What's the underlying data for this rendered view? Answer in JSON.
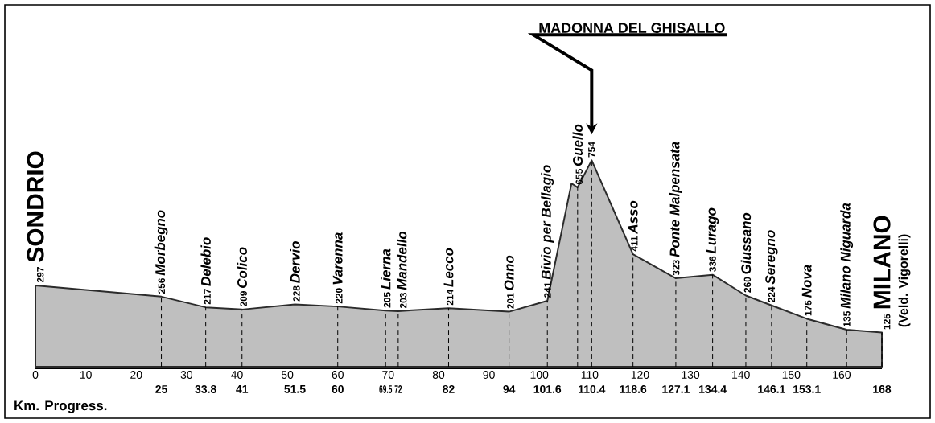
{
  "chart_data": {
    "type": "area",
    "color": "#2b2b2b",
    "x": [
      0,
      25,
      33.8,
      41,
      51.5,
      60,
      69.5,
      72,
      82,
      94,
      101.6,
      106.4,
      107.6,
      110.4,
      118.6,
      127.1,
      134.4,
      141,
      146.1,
      153.1,
      161,
      168
    ],
    "values": [
      297,
      256,
      217,
      209,
      228,
      220,
      205,
      203,
      214,
      201,
      241,
      670,
      655,
      754,
      411,
      323,
      336,
      260,
      224,
      175,
      135,
      125
    ],
    "value_labels": [
      "297",
      "256",
      "217",
      "209",
      "228",
      "220",
      "205",
      "203",
      "214",
      "201",
      "241",
      null,
      "655",
      "754",
      "411",
      "323",
      "336",
      "260",
      "224",
      "175",
      "135",
      "125"
    ],
    "xlim": [
      0,
      168
    ],
    "xticks": [
      0,
      10,
      20,
      30,
      40,
      50,
      60,
      70,
      80,
      90,
      100,
      110,
      120,
      130,
      140,
      150,
      160
    ],
    "x2ticks": [
      25,
      33.8,
      41,
      51.5,
      60,
      69.5,
      72,
      82,
      94,
      101.6,
      110.4,
      118.6,
      127.1,
      134.4,
      146.1,
      153.1,
      168
    ],
    "x2lim": [
      0,
      168
    ],
    "x2label": "Km. Progress.",
    "annotations": [
      {
        "text": "SONDRIO",
        "x": 0,
        "y": 297
      },
      {
        "text": "Morbegno",
        "x": 25,
        "y": 256
      },
      {
        "text": "Delebio",
        "x": 33.8,
        "y": 217
      },
      {
        "text": "Colico",
        "x": 41,
        "y": 209
      },
      {
        "text": "Dervio",
        "x": 51.5,
        "y": 228
      },
      {
        "text": "Varenna",
        "x": 60,
        "y": 220
      },
      {
        "text": "Lierna",
        "x": 69.5,
        "y": 205
      },
      {
        "text": "Mandello",
        "x": 72,
        "y": 203
      },
      {
        "text": "Lecco",
        "x": 82,
        "y": 214
      },
      {
        "text": "Onno",
        "x": 94,
        "y": 201
      },
      {
        "text": "Bivio per Bellagio",
        "x": 101.6,
        "y": 241
      },
      {
        "text": "Guello",
        "x": 107.6,
        "y": 655
      },
      "MADONNA DEL GHISALLO",
      {
        "text": "Asso",
        "x": 118.6,
        "y": 411
      },
      {
        "text": "Ponte Malpensata",
        "x": 127.1,
        "y": 323
      },
      {
        "text": "Lurago",
        "x": 134.4,
        "y": 336
      },
      {
        "text": "Giussano",
        "x": 141,
        "y": 260
      },
      {
        "text": "Seregno",
        "x": 146.1,
        "y": 224
      },
      {
        "text": "Nova",
        "x": 153.1,
        "y": 175
      },
      {
        "text": "Milano Niguarda",
        "x": 161,
        "y": 135
      },
      {
        "text": "MILANO",
        "x": 168,
        "y": 125
      },
      {
        "text": "(Veld. Vigorelli)",
        "x": 168,
        "y": 125
      }
    ]
  }
}
